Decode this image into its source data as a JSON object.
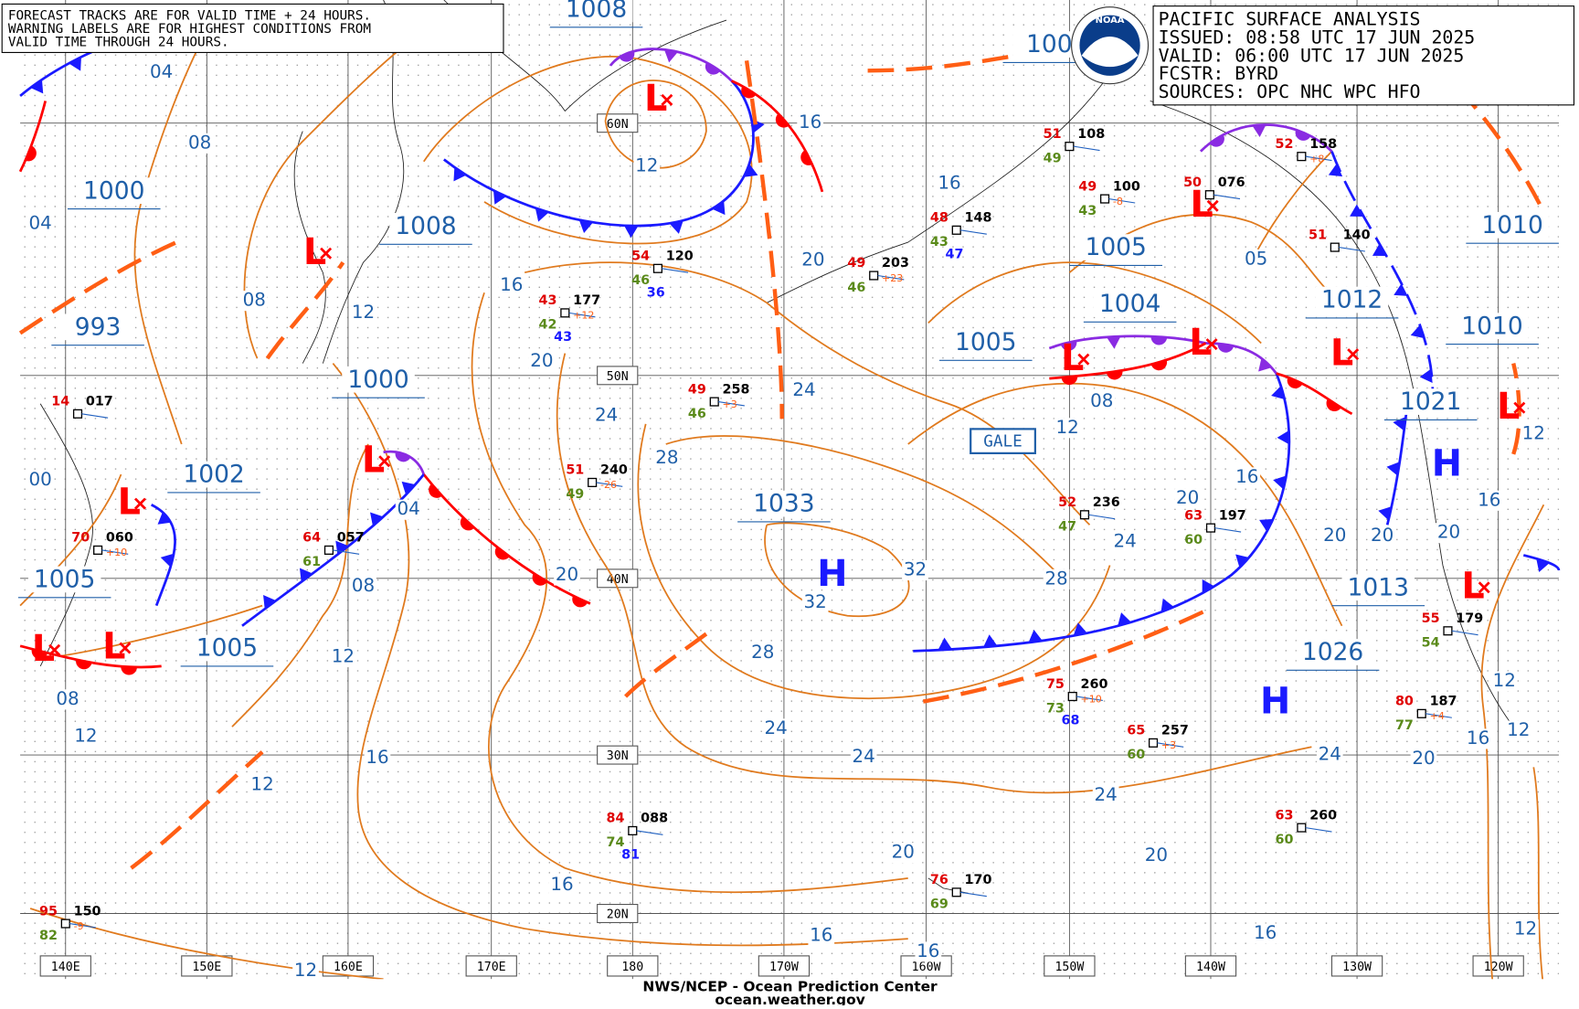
{
  "notice": [
    "FORECAST TRACKS ARE FOR VALID TIME + 24 HOURS.",
    "WARNING LABELS ARE FOR HIGHEST CONDITIONS FROM",
    "VALID TIME THROUGH 24 HOURS."
  ],
  "info": [
    "PACIFIC SURFACE ANALYSIS",
    "ISSUED: 08:58 UTC 17 JUN 2025",
    "VALID:  06:00 UTC 17 JUN 2025",
    "FCSTR:  BYRD",
    "SOURCES:  OPC NHC WPC HFO"
  ],
  "logo": "NOAA",
  "footer": [
    "NWS/NCEP - Ocean Prediction Center",
    "ocean.weather.gov"
  ],
  "longitudes": [
    "140E",
    "150E",
    "160E",
    "170E",
    "180",
    "170W",
    "160W",
    "150W",
    "140W",
    "130W",
    "120W"
  ],
  "latitudes": [
    "60N",
    "50N",
    "40N",
    "30N",
    "20N"
  ],
  "centers": [
    "1008",
    "1000",
    "1008",
    "993",
    "1000",
    "1002",
    "1005",
    "1005",
    "1033",
    "1005",
    "1004",
    "1005",
    "1012",
    "1010",
    "1010",
    "1021",
    "1013",
    "1026",
    "100"
  ],
  "highs": [
    "H",
    "H",
    "H"
  ],
  "lows": [
    "L",
    "L",
    "L",
    "L",
    "L",
    "L",
    "L",
    "L",
    "L",
    "L",
    "L",
    "L"
  ],
  "warning": "GALE",
  "isobar_labels": [
    "04",
    "08",
    "04",
    "08",
    "12",
    "16",
    "20",
    "24",
    "28",
    "12",
    "16",
    "16",
    "20",
    "24",
    "04",
    "08",
    "12",
    "16",
    "12",
    "08",
    "12",
    "00",
    "20",
    "32",
    "32",
    "28",
    "28",
    "24",
    "24",
    "20",
    "16",
    "16",
    "16",
    "12",
    "24",
    "20",
    "16",
    "24",
    "20",
    "16",
    "12",
    "12",
    "12",
    "08",
    "12",
    "16",
    "20",
    "24",
    "20",
    "20",
    "20",
    "16",
    "12",
    "05"
  ],
  "stations": [
    {
      "pressure": "120",
      "temp": "54",
      "dew": "46",
      "extra": "36"
    },
    {
      "pressure": "177",
      "temp": "43",
      "dew": "42",
      "extra": "43",
      "tendency": "+12"
    },
    {
      "pressure": "258",
      "temp": "49",
      "dew": "46",
      "tendency": "+3"
    },
    {
      "pressure": "240",
      "temp": "51",
      "dew": "49",
      "tendency": "-26"
    },
    {
      "pressure": "260",
      "temp": "75",
      "dew": "73",
      "extra": "68",
      "tendency": "+10"
    },
    {
      "pressure": "257",
      "temp": "65",
      "dew": "60",
      "tendency": "+3"
    },
    {
      "pressure": "187",
      "temp": "80",
      "dew": "77",
      "tendency": "+4"
    },
    {
      "pressure": "088",
      "temp": "84",
      "dew": "74",
      "extra": "81"
    },
    {
      "pressure": "170",
      "temp": "76",
      "dew": "69"
    },
    {
      "pressure": "260",
      "temp": "63",
      "dew": "60"
    },
    {
      "pressure": "150",
      "temp": "95",
      "dew": "82",
      "tendency": "-9"
    },
    {
      "pressure": "100",
      "temp": "49",
      "dew": "43",
      "tendency": "-8"
    },
    {
      "pressure": "148",
      "temp": "48",
      "dew": "43",
      "extra": "47"
    },
    {
      "pressure": "203",
      "temp": "49",
      "dew": "46",
      "tendency": "+23"
    },
    {
      "pressure": "108",
      "temp": "51",
      "dew": "49"
    },
    {
      "pressure": "060",
      "temp": "70",
      "tendency": "+10"
    },
    {
      "pressure": "017",
      "temp": "14"
    },
    {
      "pressure": "057",
      "temp": "64",
      "dew": "61"
    },
    {
      "pressure": "197",
      "temp": "63",
      "dew": "60"
    },
    {
      "pressure": "236",
      "temp": "52",
      "dew": "47"
    },
    {
      "pressure": "076",
      "temp": "50"
    },
    {
      "pressure": "158",
      "temp": "52",
      "tendency": "+8"
    },
    {
      "pressure": "140",
      "temp": "51"
    },
    {
      "pressure": "179",
      "temp": "55",
      "dew": "54"
    }
  ]
}
